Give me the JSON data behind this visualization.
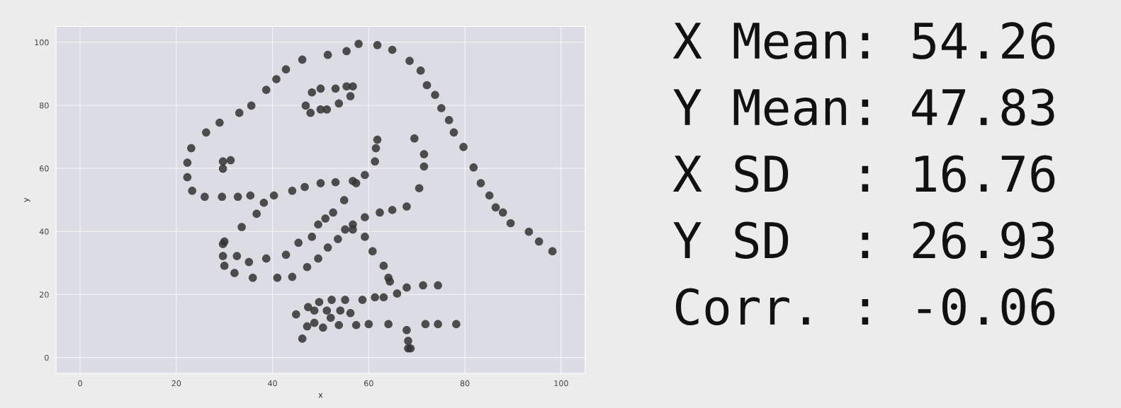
{
  "chart_data": {
    "type": "scatter",
    "xlabel": "x",
    "ylabel": "y",
    "xlim": [
      -5,
      105
    ],
    "ylim": [
      -5,
      105
    ],
    "xticks": [
      0,
      20,
      40,
      60,
      80,
      100
    ],
    "yticks": [
      0,
      20,
      40,
      60,
      80,
      100
    ],
    "grid": true,
    "marker": "circle",
    "series": [
      {
        "color": "#333333",
        "x": [
          55.4,
          51.5,
          46.2,
          42.8,
          40.8,
          38.7,
          35.6,
          33.1,
          29.0,
          26.2,
          23.1,
          22.3,
          22.3,
          23.3,
          25.9,
          29.5,
          32.8,
          35.4,
          40.3,
          44.1,
          46.7,
          50.0,
          53.1,
          56.7,
          59.2,
          61.3,
          61.5,
          61.8,
          57.4,
          54.9,
          52.6,
          48.2,
          49.5,
          51.0,
          45.4,
          42.8,
          38.7,
          35.1,
          32.6,
          30.0,
          33.6,
          36.7,
          38.2,
          29.7,
          29.7,
          30.0,
          32.1,
          35.9,
          41.0,
          44.1,
          47.2,
          49.5,
          51.5,
          53.6,
          55.1,
          56.7,
          59.2,
          62.3,
          64.9,
          67.9,
          70.5,
          71.5,
          71.5,
          69.5,
          46.9,
          48.2,
          50.0,
          53.1,
          55.4,
          56.7,
          56.2,
          53.8,
          51.3,
          50.0,
          47.9,
          29.7,
          29.7,
          31.3,
          57.9,
          61.8,
          64.9,
          68.5,
          70.8,
          72.1,
          73.8,
          75.1,
          76.7,
          77.7,
          79.7,
          81.8,
          83.3,
          85.1,
          86.4,
          87.9,
          89.5,
          93.3,
          95.4,
          98.2,
          56.7,
          59.2,
          60.8,
          63.1,
          64.1,
          64.4,
          74.4,
          71.3,
          67.9,
          65.9,
          63.1,
          61.3,
          58.7,
          55.1,
          52.3,
          49.7,
          47.4,
          44.9,
          48.7,
          51.3,
          54.1,
          56.2,
          52.1,
          48.7,
          47.2,
          46.2,
          50.5,
          53.8,
          57.4,
          60.0,
          64.1,
          67.9,
          71.8,
          74.4,
          78.2,
          68.2,
          68.7,
          68.2
        ],
        "values": [
          97.2,
          96.0,
          94.5,
          91.4,
          88.3,
          84.9,
          79.9,
          77.6,
          74.5,
          71.4,
          66.4,
          61.8,
          57.2,
          52.9,
          51.0,
          51.0,
          51.0,
          51.4,
          51.4,
          52.9,
          54.1,
          55.3,
          55.6,
          56.0,
          57.9,
          62.2,
          66.4,
          69.1,
          55.3,
          49.9,
          46.0,
          38.3,
          42.2,
          44.1,
          36.4,
          32.6,
          31.4,
          30.3,
          32.2,
          36.8,
          41.4,
          45.6,
          49.1,
          36.0,
          32.2,
          29.1,
          26.8,
          25.3,
          25.3,
          25.6,
          28.7,
          31.4,
          34.9,
          37.6,
          40.6,
          42.2,
          44.5,
          46.0,
          46.8,
          47.9,
          53.7,
          60.6,
          64.5,
          69.5,
          79.9,
          84.1,
          85.3,
          85.3,
          86.0,
          86.0,
          82.9,
          80.6,
          78.7,
          78.7,
          77.6,
          59.9,
          62.2,
          62.6,
          99.5,
          99.1,
          97.6,
          94.1,
          91.0,
          86.4,
          83.3,
          79.1,
          75.3,
          71.4,
          66.8,
          60.3,
          55.3,
          51.4,
          47.6,
          46.0,
          42.6,
          39.9,
          36.8,
          33.7,
          40.6,
          38.3,
          33.7,
          29.1,
          25.3,
          24.1,
          22.9,
          22.9,
          22.2,
          20.3,
          19.1,
          19.1,
          18.3,
          18.3,
          18.3,
          17.6,
          16.0,
          13.7,
          14.9,
          14.9,
          14.9,
          14.1,
          12.6,
          11.0,
          9.9,
          6.0,
          9.5,
          10.3,
          10.3,
          10.6,
          10.6,
          8.7,
          10.6,
          10.6,
          10.6,
          5.3,
          2.9,
          2.9
        ]
      }
    ],
    "annotations": [
      "X Mean: 54.26",
      "Y Mean: 47.83",
      "X SD  : 16.76",
      "Y SD  : 26.93",
      "Corr. : -0.06"
    ]
  }
}
